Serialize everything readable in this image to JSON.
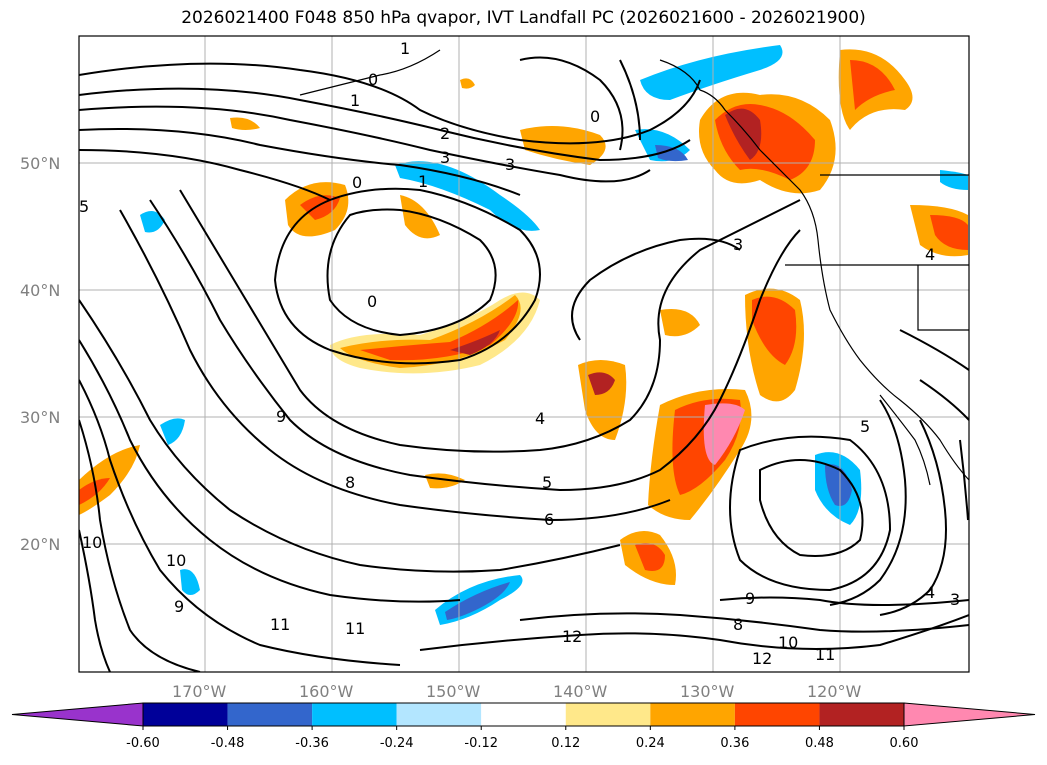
{
  "title": "2026021400 F048 850 hPa qvapor, IVT Landfall PC (2026021600 - 2026021900)",
  "lat_labels": [
    "50°N",
    "40°N",
    "30°N",
    "20°N"
  ],
  "lon_labels": [
    "170°W",
    "160°W",
    "150°W",
    "140°W",
    "130°W",
    "120°W"
  ],
  "contour_labels": [
    "0",
    "1",
    "1",
    "2",
    "3",
    "3",
    "0",
    "0",
    "1",
    "4",
    "5",
    "6",
    "5",
    "9",
    "8",
    "10",
    "10",
    "9",
    "11",
    "11",
    "12",
    "12",
    "11",
    "10",
    "9",
    "8",
    "3",
    "4",
    "3",
    "4",
    "0",
    "5"
  ],
  "colorbar": {
    "colors": [
      "#9933cc",
      "#000099",
      "#3366cc",
      "#00bfff",
      "#b3e6ff",
      "#ffffff",
      "#ffe88a",
      "#ffa500",
      "#ff4500",
      "#b22222",
      "#ff88b0"
    ],
    "tick_labels": [
      "-0.60",
      "-0.48",
      "-0.36",
      "-0.24",
      "-0.12",
      "0.12",
      "0.24",
      "0.36",
      "0.48",
      "0.60"
    ]
  },
  "chart_data": {
    "type": "map",
    "title": "2026021400 F048 850 hPa qvapor, IVT Landfall PC (2026021600 - 2026021900)",
    "field": "850 hPa qvapor (contours), IVT Landfall PC (filled)",
    "lat_range": [
      10,
      60
    ],
    "lon_range": [
      -180,
      -110
    ],
    "lat_ticks": [
      50,
      40,
      30,
      20
    ],
    "lon_ticks": [
      -170,
      -160,
      -150,
      -140,
      -130,
      -120
    ],
    "contour_levels": [
      0,
      1,
      2,
      3,
      4,
      5,
      6,
      7,
      8,
      9,
      10,
      11,
      12,
      13
    ],
    "fill_levels": [
      -0.6,
      -0.48,
      -0.36,
      -0.24,
      -0.12,
      0.12,
      0.24,
      0.36,
      0.48,
      0.6
    ],
    "grid": true
  }
}
